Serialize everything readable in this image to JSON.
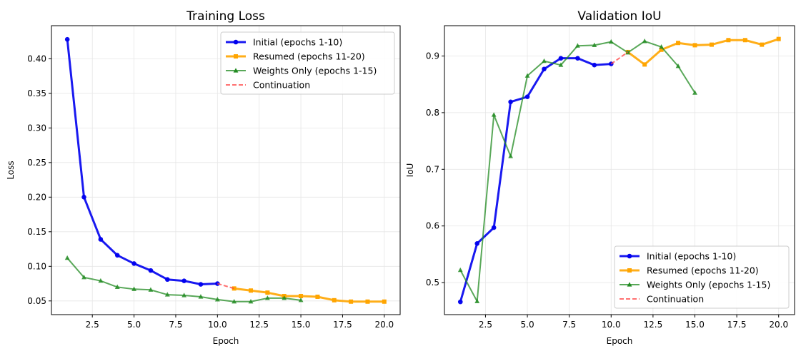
{
  "chart_data": [
    {
      "type": "line",
      "title": "Training Loss",
      "xlabel": "Epoch",
      "ylabel": "Loss",
      "xlim": [
        0.05,
        20.95
      ],
      "ylim": [
        0.0302,
        0.4478
      ],
      "xticks": [
        2.5,
        5.0,
        7.5,
        10.0,
        12.5,
        15.0,
        17.5,
        20.0
      ],
      "xtick_labels": [
        "2.5",
        "5.0",
        "7.5",
        "10.0",
        "12.5",
        "15.0",
        "17.5",
        "20.0"
      ],
      "yticks": [
        0.05,
        0.1,
        0.15,
        0.2,
        0.25,
        0.3,
        0.35,
        0.4
      ],
      "ytick_labels": [
        "0.05",
        "0.10",
        "0.15",
        "0.20",
        "0.25",
        "0.30",
        "0.35",
        "0.40"
      ],
      "grid": true,
      "legend_position": "top-right",
      "series": [
        {
          "name": "Initial (epochs 1-10)",
          "color": "#0000ee",
          "marker": "circle",
          "dash": false,
          "x": [
            1,
            2,
            3,
            4,
            5,
            6,
            7,
            8,
            9,
            10
          ],
          "y": [
            0.428,
            0.2,
            0.139,
            0.116,
            0.104,
            0.094,
            0.081,
            0.079,
            0.074,
            0.075
          ]
        },
        {
          "name": "Resumed (epochs 11-20)",
          "color": "#ffa500",
          "marker": "square",
          "dash": false,
          "x": [
            11,
            12,
            13,
            14,
            15,
            16,
            17,
            18,
            19,
            20
          ],
          "y": [
            0.068,
            0.065,
            0.062,
            0.057,
            0.057,
            0.056,
            0.051,
            0.049,
            0.049,
            0.049
          ]
        },
        {
          "name": "Weights Only (epochs 1-15)",
          "color": "#228b22",
          "marker": "triangle",
          "dash": false,
          "x": [
            1,
            2,
            3,
            4,
            5,
            6,
            7,
            8,
            9,
            10,
            11,
            12,
            13,
            14,
            15
          ],
          "y": [
            0.112,
            0.084,
            0.079,
            0.07,
            0.067,
            0.066,
            0.059,
            0.058,
            0.056,
            0.052,
            0.049,
            0.049,
            0.054,
            0.054,
            0.051
          ]
        },
        {
          "name": "Continuation",
          "color": "#ff4040",
          "marker": "none",
          "dash": true,
          "x": [
            10,
            11
          ],
          "y": [
            0.075,
            0.068
          ]
        }
      ]
    },
    {
      "type": "line",
      "title": "Validation IoU",
      "xlabel": "Epoch",
      "ylabel": "IoU",
      "xlim": [
        0.05,
        20.95
      ],
      "ylim": [
        0.4435,
        0.9535
      ],
      "xticks": [
        2.5,
        5.0,
        7.5,
        10.0,
        12.5,
        15.0,
        17.5,
        20.0
      ],
      "xtick_labels": [
        "2.5",
        "5.0",
        "7.5",
        "10.0",
        "12.5",
        "15.0",
        "17.5",
        "20.0"
      ],
      "yticks": [
        0.5,
        0.6,
        0.7,
        0.8,
        0.9
      ],
      "ytick_labels": [
        "0.5",
        "0.6",
        "0.7",
        "0.8",
        "0.9"
      ],
      "grid": true,
      "legend_position": "bottom-right",
      "series": [
        {
          "name": "Initial (epochs 1-10)",
          "color": "#0000ee",
          "marker": "circle",
          "dash": false,
          "x": [
            1,
            2,
            3,
            4,
            5,
            6,
            7,
            8,
            9,
            10
          ],
          "y": [
            0.466,
            0.569,
            0.597,
            0.819,
            0.828,
            0.877,
            0.896,
            0.896,
            0.884,
            0.886
          ]
        },
        {
          "name": "Resumed (epochs 11-20)",
          "color": "#ffa500",
          "marker": "square",
          "dash": false,
          "x": [
            11,
            12,
            13,
            14,
            15,
            16,
            17,
            18,
            19,
            20
          ],
          "y": [
            0.907,
            0.885,
            0.911,
            0.923,
            0.919,
            0.92,
            0.928,
            0.928,
            0.92,
            0.93
          ]
        },
        {
          "name": "Weights Only (epochs 1-15)",
          "color": "#228b22",
          "marker": "triangle",
          "dash": false,
          "x": [
            1,
            2,
            3,
            4,
            5,
            6,
            7,
            8,
            9,
            10,
            11,
            12,
            13,
            14,
            15
          ],
          "y": [
            0.522,
            0.467,
            0.796,
            0.723,
            0.865,
            0.891,
            0.884,
            0.918,
            0.919,
            0.925,
            0.906,
            0.926,
            0.916,
            0.882,
            0.835
          ]
        },
        {
          "name": "Continuation",
          "color": "#ff4040",
          "marker": "none",
          "dash": true,
          "x": [
            10,
            11
          ],
          "y": [
            0.886,
            0.907
          ]
        }
      ]
    }
  ]
}
